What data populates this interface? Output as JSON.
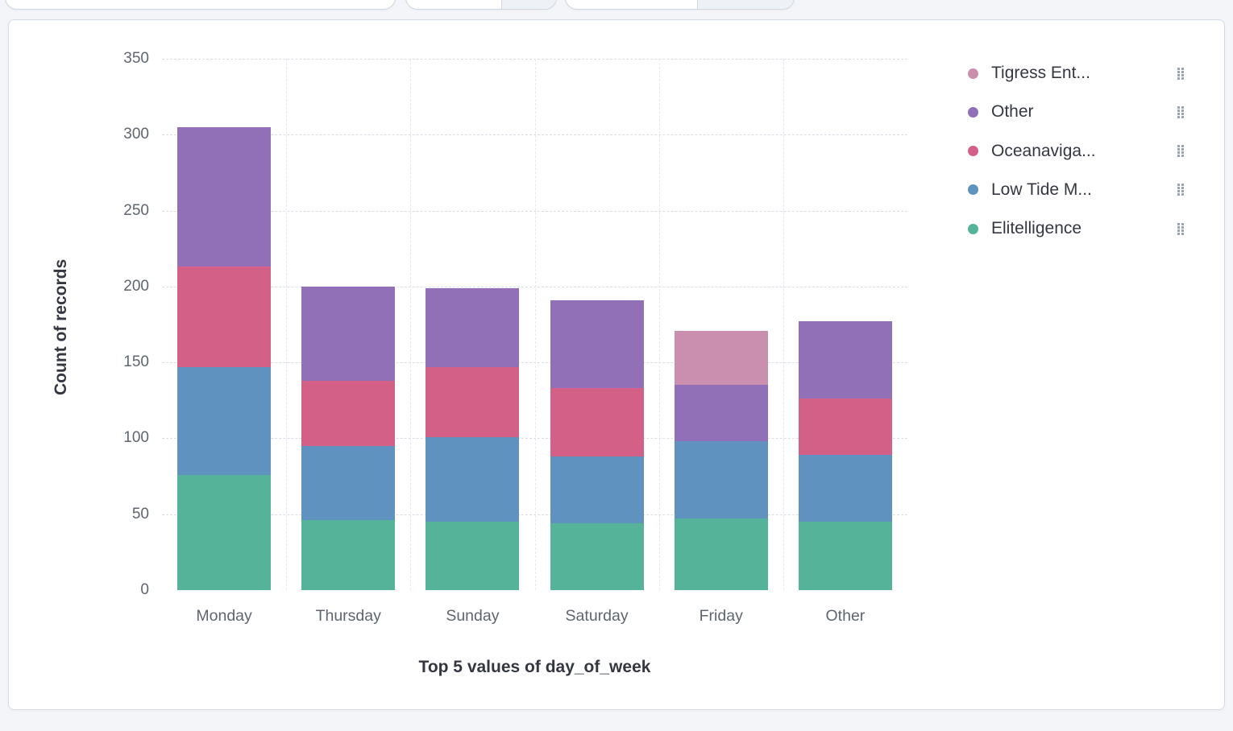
{
  "colors": {
    "green": "#54b399",
    "blue": "#6092c0",
    "rose": "#d36086",
    "purple": "#9170b8",
    "pink": "#ca8eae",
    "panel_border": "#d3dae6",
    "background": "#f3f5f9"
  },
  "chart_data": {
    "type": "bar",
    "stacked": true,
    "categories": [
      "Monday",
      "Thursday",
      "Sunday",
      "Saturday",
      "Friday",
      "Other"
    ],
    "series": [
      {
        "name": "Elitelligence",
        "color": "#54b399",
        "values": [
          76,
          46,
          45,
          44,
          47,
          45
        ]
      },
      {
        "name": "Low Tide M...",
        "color": "#6092c0",
        "values": [
          71,
          49,
          56,
          44,
          51,
          44
        ]
      },
      {
        "name": "Oceanaviga...",
        "color": "#d36086",
        "values": [
          66,
          43,
          46,
          45,
          0,
          37
        ]
      },
      {
        "name": "Other",
        "color": "#9170b8",
        "values": [
          92,
          62,
          52,
          58,
          37,
          51
        ]
      },
      {
        "name": "Tigress Ent...",
        "color": "#ca8eae",
        "values": [
          0,
          0,
          0,
          0,
          36,
          0
        ]
      }
    ],
    "title": "",
    "xlabel": "Top 5 values of day_of_week",
    "ylabel": "Count of records",
    "ylim": [
      0,
      350
    ],
    "yticks": [
      0,
      50,
      100,
      150,
      200,
      250,
      300,
      350
    ],
    "grid": true,
    "legend_position": "right"
  },
  "legend": {
    "items": [
      {
        "label": "Tigress Ent...",
        "color": "#ca8eae"
      },
      {
        "label": "Other",
        "color": "#9170b8"
      },
      {
        "label": "Oceanaviga...",
        "color": "#d36086"
      },
      {
        "label": "Low Tide M...",
        "color": "#6092c0"
      },
      {
        "label": "Elitelligence",
        "color": "#54b399"
      }
    ]
  }
}
